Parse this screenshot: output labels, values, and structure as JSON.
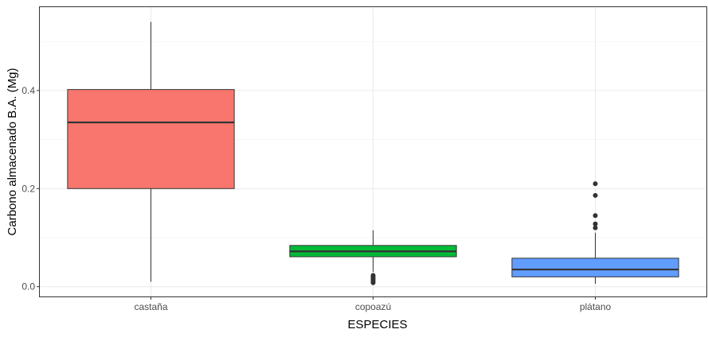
{
  "chart_data": {
    "type": "boxplot",
    "title": "",
    "xlabel": "ESPECIES",
    "ylabel": "Carbono almacenado B.A. (Mg)",
    "ylim": [
      -0.02,
      0.57
    ],
    "yticks": [
      0.0,
      0.2,
      0.4
    ],
    "ytick_labels": [
      "0.0",
      "0.2",
      "0.4"
    ],
    "grid": true,
    "legend": "none",
    "categories": [
      "castaña",
      "copoazú",
      "plátano"
    ],
    "boxes": [
      {
        "category": "castaña",
        "color": "#F8766D",
        "q1": 0.2,
        "median": 0.335,
        "q3": 0.402,
        "whisker_low": 0.01,
        "whisker_high": 0.54,
        "outliers": []
      },
      {
        "category": "copoazú",
        "color": "#00BA38",
        "q1": 0.061,
        "median": 0.072,
        "q3": 0.084,
        "whisker_low": 0.03,
        "whisker_high": 0.115,
        "outliers": [
          0.008,
          0.011,
          0.014,
          0.017,
          0.02,
          0.023
        ]
      },
      {
        "category": "plátano",
        "color": "#619CFF",
        "q1": 0.02,
        "median": 0.035,
        "q3": 0.058,
        "whisker_low": 0.006,
        "whisker_high": 0.11,
        "outliers": [
          0.12,
          0.128,
          0.145,
          0.186,
          0.21
        ]
      }
    ]
  }
}
